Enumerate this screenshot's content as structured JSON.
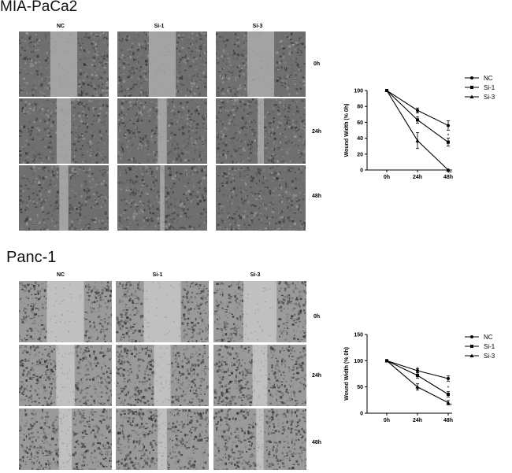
{
  "panels": [
    {
      "title": "MIA-PaCa2",
      "columns": [
        "NC",
        "Si-1",
        "Si-3"
      ],
      "rows": [
        "0h",
        "24h",
        "48h"
      ],
      "gap_scale": [
        [
          0.3,
          0.3,
          0.3
        ],
        [
          0.16,
          0.1,
          0.07
        ],
        [
          0.1,
          0.05,
          0.0
        ]
      ],
      "tone": "dark",
      "chart_data": {
        "type": "line",
        "ylabel": "Wound Width (% 0h)",
        "xlabel": "",
        "categories": [
          "0h",
          "24h",
          "48h"
        ],
        "ylim": [
          0,
          100
        ],
        "yticks": [
          "0",
          "20",
          "40",
          "60",
          "80",
          "100"
        ],
        "legend_position": "top-right",
        "series": [
          {
            "name": "NC",
            "values": [
              100,
              75,
              56
            ],
            "errors": [
              0,
              3,
              6
            ],
            "marker": "circle",
            "annotations": [
              "",
              "",
              ""
            ]
          },
          {
            "name": "Si-1",
            "values": [
              100,
              63,
              35
            ],
            "errors": [
              0,
              4,
              5
            ],
            "marker": "square",
            "annotations": [
              "",
              "*",
              "*"
            ]
          },
          {
            "name": "Si-3",
            "values": [
              100,
              37,
              0
            ],
            "errors": [
              0,
              10,
              1
            ],
            "marker": "triangle",
            "annotations": [
              "",
              "*",
              "**"
            ]
          }
        ]
      }
    },
    {
      "title": "Panc-1",
      "columns": [
        "NC",
        "Si-1",
        "Si-3"
      ],
      "rows": [
        "0h",
        "24h",
        "48h"
      ],
      "gap_scale": [
        [
          0.4,
          0.4,
          0.36
        ],
        [
          0.2,
          0.18,
          0.16
        ],
        [
          0.14,
          0.1,
          0.08
        ]
      ],
      "tone": "light",
      "chart_data": {
        "type": "line",
        "ylabel": "Wound Width (% 0h)",
        "xlabel": "",
        "categories": [
          "0h",
          "24h",
          "48h"
        ],
        "ylim": [
          0,
          150
        ],
        "yticks": [
          "0",
          "50",
          "100",
          "150"
        ],
        "legend_position": "top-right",
        "series": [
          {
            "name": "NC",
            "values": [
              100,
              81,
              66
            ],
            "errors": [
              0,
              4,
              5
            ],
            "marker": "circle",
            "annotations": [
              "",
              "",
              ""
            ]
          },
          {
            "name": "Si-1",
            "values": [
              100,
              72,
              36
            ],
            "errors": [
              0,
              5,
              5
            ],
            "marker": "square",
            "annotations": [
              "",
              "*",
              "*"
            ]
          },
          {
            "name": "Si-3",
            "values": [
              100,
              50,
              20
            ],
            "errors": [
              0,
              6,
              4
            ],
            "marker": "triangle",
            "annotations": [
              "",
              "*",
              "**"
            ]
          }
        ]
      }
    }
  ]
}
